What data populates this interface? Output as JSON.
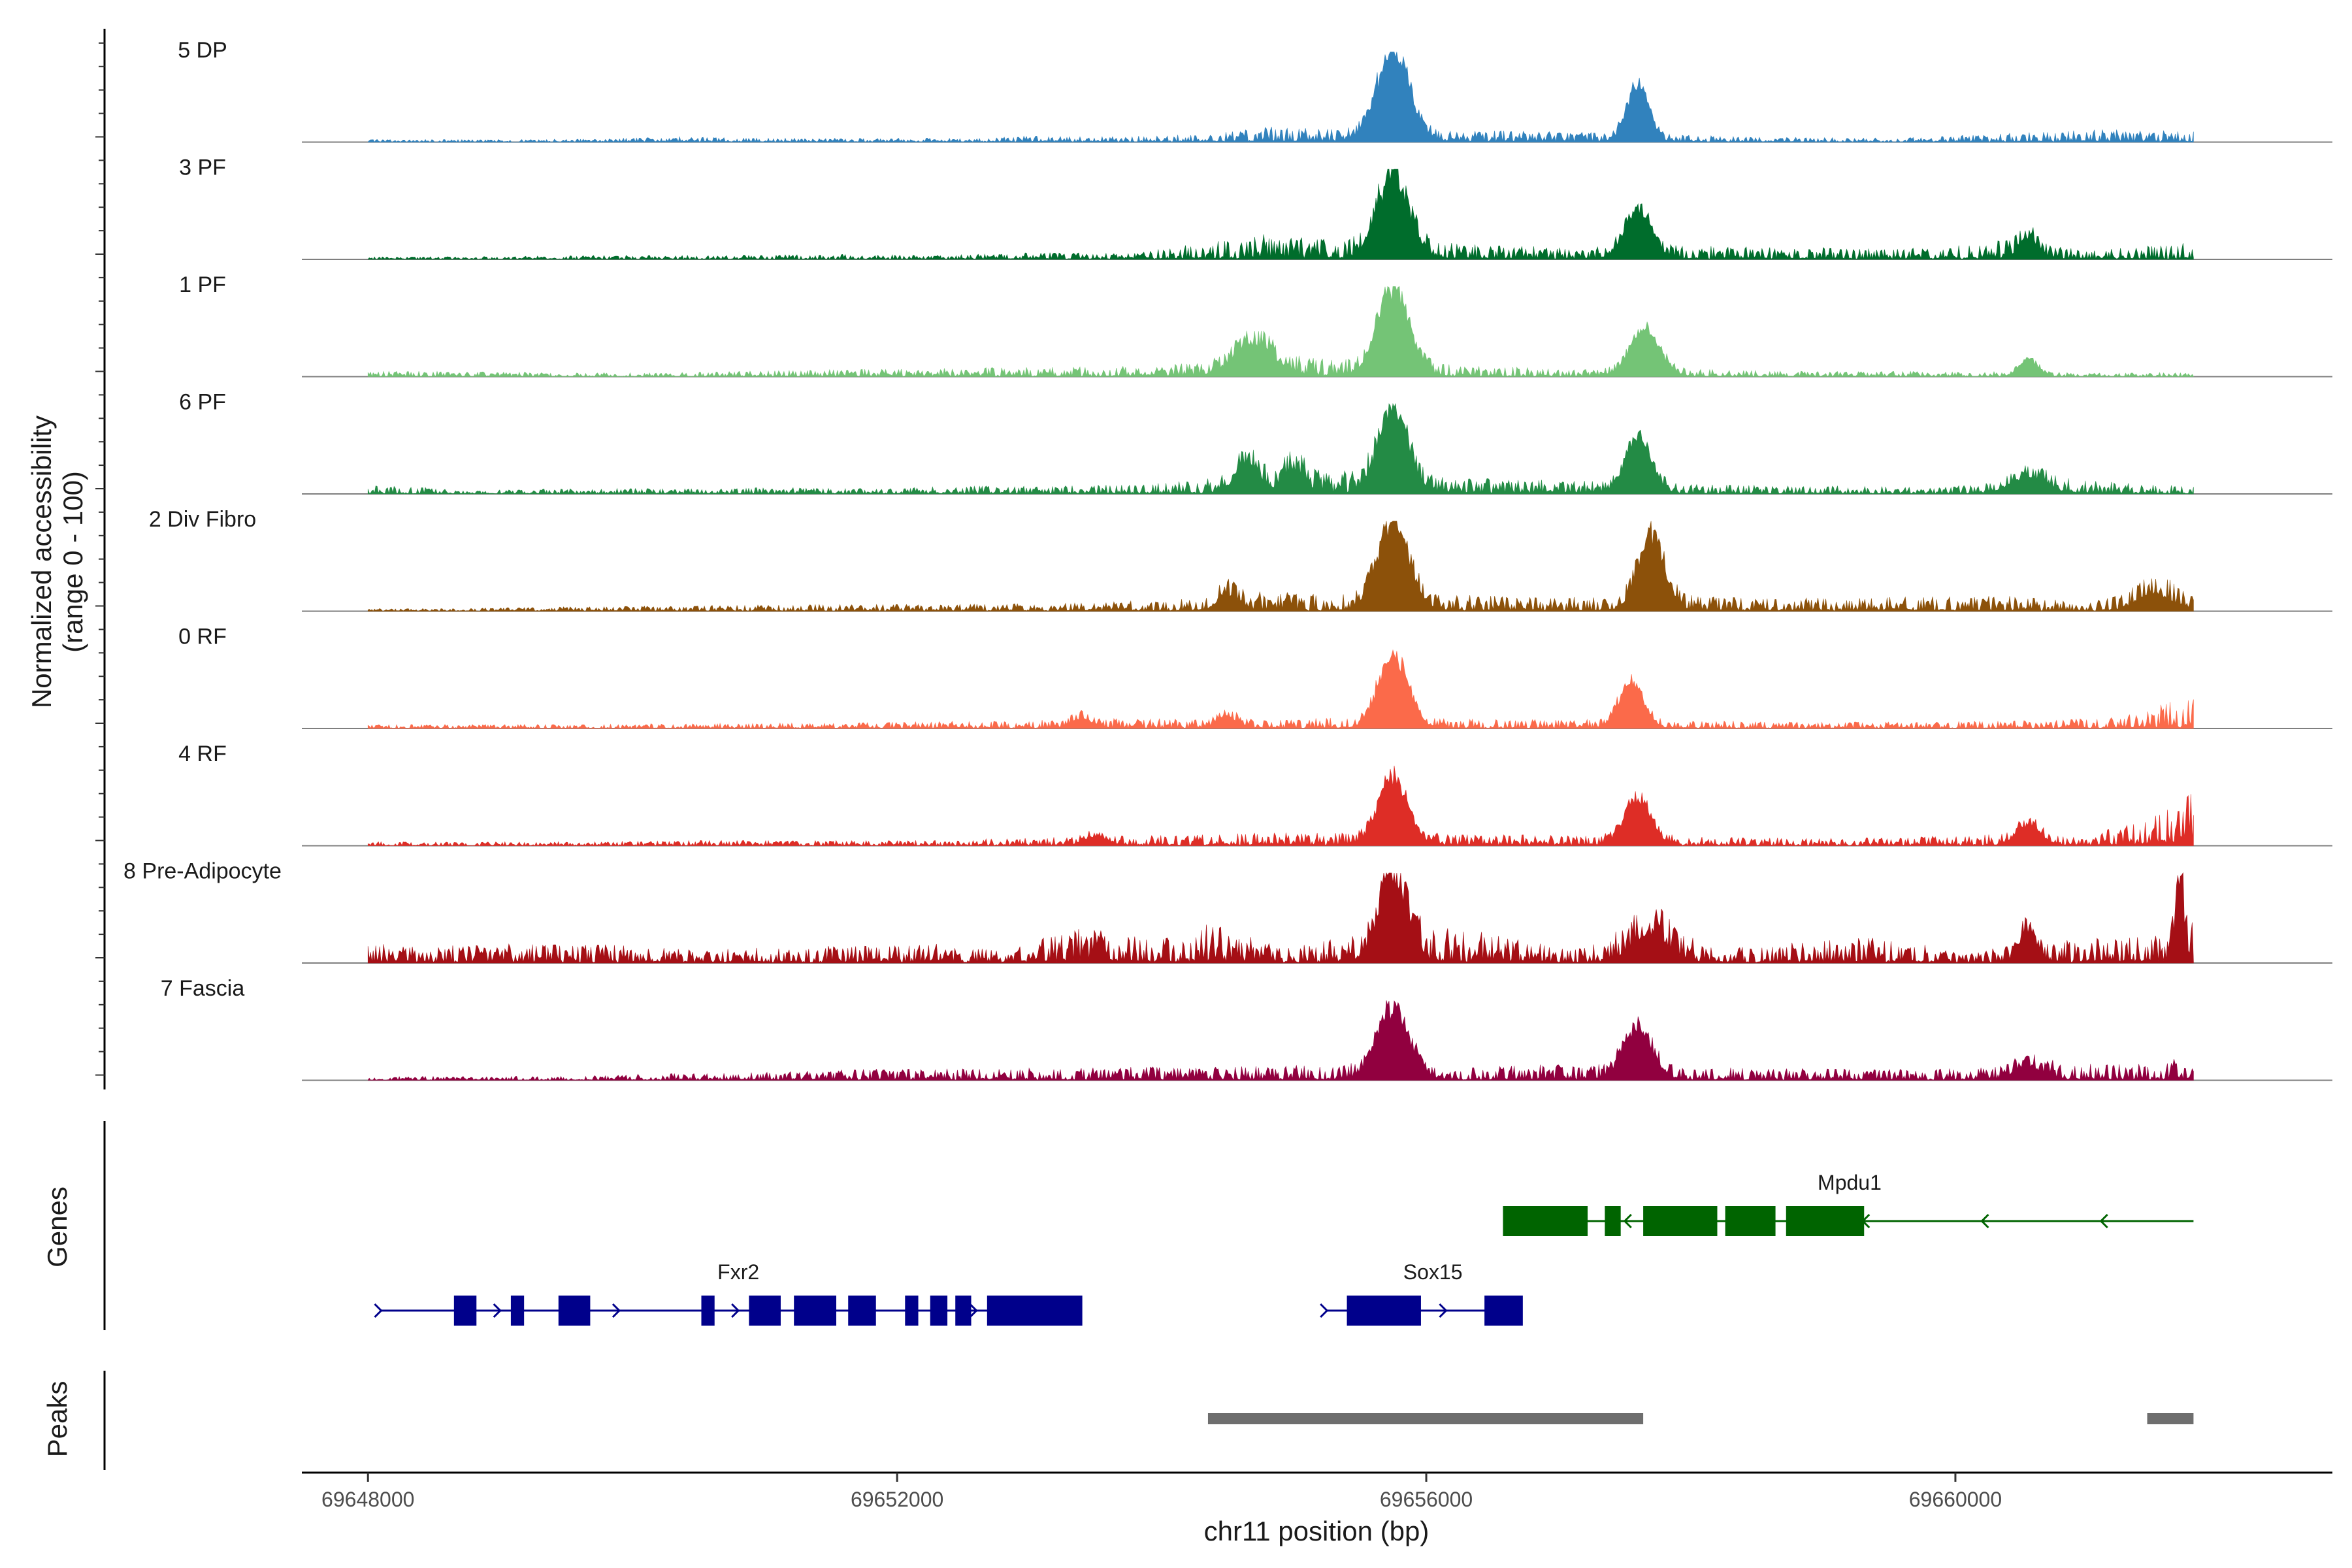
{
  "chart_data": {
    "type": "area",
    "chromosome": "chr11",
    "xlim": [
      69647500,
      69662850
    ],
    "xlabel": "chr11 position (bp)",
    "ylabel": "Normalized accessibility",
    "ylabel_sub": "(range 0 - 100)",
    "ylim": [
      0,
      100
    ],
    "x_ticks": [
      69648000,
      69652000,
      69656000,
      69660000
    ],
    "x_tick_labels": [
      "69648000",
      "69652000",
      "69656000",
      "69660000"
    ],
    "track_range": [
      69648000,
      69661800
    ],
    "series": [
      {
        "name": "5 DP",
        "color": "#3182bd",
        "baseline": [
          [
            69648700,
            2
          ],
          [
            69649300,
            2
          ],
          [
            69649900,
            3
          ],
          [
            69650300,
            4
          ],
          [
            69651000,
            3
          ],
          [
            69651800,
            3
          ],
          [
            69652600,
            3
          ],
          [
            69653100,
            5
          ],
          [
            69653600,
            4
          ],
          [
            69654300,
            6
          ],
          [
            69654800,
            12
          ],
          [
            69655200,
            10
          ],
          [
            69656300,
            9
          ],
          [
            69656900,
            8
          ],
          [
            69657700,
            6
          ],
          [
            69658500,
            4
          ],
          [
            69659500,
            3
          ],
          [
            69660300,
            6
          ],
          [
            69661200,
            10
          ],
          [
            69661700,
            8
          ]
        ],
        "peaks": [
          [
            69655750,
            100,
            120
          ],
          [
            69657600,
            62,
            80
          ]
        ]
      },
      {
        "name": "3 PF",
        "color": "#006d2c",
        "baseline": [
          [
            69648700,
            2
          ],
          [
            69649600,
            3
          ],
          [
            69650600,
            3
          ],
          [
            69651400,
            4
          ],
          [
            69652300,
            3
          ],
          [
            69653000,
            5
          ],
          [
            69653800,
            5
          ],
          [
            69654300,
            12
          ],
          [
            69654700,
            20
          ],
          [
            69655200,
            15
          ],
          [
            69656300,
            12
          ],
          [
            69657000,
            9
          ],
          [
            69658000,
            10
          ],
          [
            69658800,
            9
          ],
          [
            69659600,
            8
          ],
          [
            69660300,
            14
          ],
          [
            69661000,
            7
          ],
          [
            69661700,
            12
          ]
        ],
        "peaks": [
          [
            69655750,
            88,
            120
          ],
          [
            69657600,
            55,
            100
          ],
          [
            69660550,
            22,
            70
          ]
        ]
      },
      {
        "name": "1 PF",
        "color": "#74c476",
        "baseline": [
          [
            69648700,
            4
          ],
          [
            69649500,
            3
          ],
          [
            69650300,
            3
          ],
          [
            69651200,
            5
          ],
          [
            69652000,
            6
          ],
          [
            69653000,
            7
          ],
          [
            69653800,
            8
          ],
          [
            69654200,
            10
          ],
          [
            69654900,
            15
          ],
          [
            69656400,
            8
          ],
          [
            69657000,
            6
          ],
          [
            69658000,
            6
          ],
          [
            69659200,
            4
          ],
          [
            69660000,
            4
          ],
          [
            69661000,
            3
          ],
          [
            69661700,
            3
          ]
        ],
        "peaks": [
          [
            69654700,
            35,
            150
          ],
          [
            69655750,
            95,
            120
          ],
          [
            69657650,
            50,
            110
          ],
          [
            69660550,
            18,
            70
          ]
        ]
      },
      {
        "name": "6 PF",
        "color": "#238b45",
        "baseline": [
          [
            69648200,
            6
          ],
          [
            69648800,
            3
          ],
          [
            69649600,
            4
          ],
          [
            69650400,
            4
          ],
          [
            69651200,
            5
          ],
          [
            69651900,
            4
          ],
          [
            69652500,
            6
          ],
          [
            69653300,
            6
          ],
          [
            69654000,
            8
          ],
          [
            69654600,
            14
          ],
          [
            69655200,
            18
          ],
          [
            69656400,
            12
          ],
          [
            69657100,
            10
          ],
          [
            69658000,
            7
          ],
          [
            69659000,
            6
          ],
          [
            69659900,
            5
          ],
          [
            69660700,
            12
          ],
          [
            69661300,
            8
          ],
          [
            69661700,
            6
          ]
        ],
        "peaks": [
          [
            69654650,
            33,
            90
          ],
          [
            69655000,
            24,
            80
          ],
          [
            69655750,
            92,
            110
          ],
          [
            69657600,
            58,
            100
          ],
          [
            69660550,
            18,
            130
          ]
        ]
      },
      {
        "name": "2 Div Fibro",
        "color": "#8c510a",
        "baseline": [
          [
            69648600,
            2
          ],
          [
            69649300,
            3
          ],
          [
            69650200,
            4
          ],
          [
            69651000,
            5
          ],
          [
            69651700,
            5
          ],
          [
            69652400,
            5
          ],
          [
            69653200,
            6
          ],
          [
            69654100,
            9
          ],
          [
            69654800,
            15
          ],
          [
            69655300,
            12
          ],
          [
            69656300,
            12
          ],
          [
            69656900,
            10
          ],
          [
            69657900,
            12
          ],
          [
            69658500,
            10
          ],
          [
            69659300,
            10
          ],
          [
            69660300,
            12
          ],
          [
            69661000,
            7
          ],
          [
            69661800,
            20
          ]
        ],
        "peaks": [
          [
            69655750,
            92,
            120
          ],
          [
            69657700,
            78,
            100
          ],
          [
            69654500,
            18,
            70
          ],
          [
            69661500,
            18,
            120
          ]
        ]
      },
      {
        "name": "0 RF",
        "color": "#fb6a4a",
        "baseline": [
          [
            69648700,
            3
          ],
          [
            69649600,
            3
          ],
          [
            69650500,
            4
          ],
          [
            69651300,
            4
          ],
          [
            69652200,
            5
          ],
          [
            69653000,
            6
          ],
          [
            69653800,
            8
          ],
          [
            69654600,
            6
          ],
          [
            69655300,
            8
          ],
          [
            69656300,
            7
          ],
          [
            69657000,
            7
          ],
          [
            69658000,
            6
          ],
          [
            69659000,
            5
          ],
          [
            69659800,
            5
          ],
          [
            69660600,
            6
          ],
          [
            69661200,
            8
          ],
          [
            69661800,
            25
          ]
        ],
        "peaks": [
          [
            69655750,
            78,
            110
          ],
          [
            69657550,
            48,
            90
          ],
          [
            69654500,
            12,
            80
          ],
          [
            69653400,
            10,
            80
          ]
        ]
      },
      {
        "name": "4 RF",
        "color": "#de2d26",
        "baseline": [
          [
            69648700,
            3
          ],
          [
            69649700,
            3
          ],
          [
            69650600,
            4
          ],
          [
            69651500,
            4
          ],
          [
            69652300,
            4
          ],
          [
            69653000,
            6
          ],
          [
            69653700,
            7
          ],
          [
            69654400,
            9
          ],
          [
            69655100,
            10
          ],
          [
            69656300,
            9
          ],
          [
            69657000,
            8
          ],
          [
            69657900,
            7
          ],
          [
            69658700,
            6
          ],
          [
            69659600,
            6
          ],
          [
            69660200,
            9
          ],
          [
            69661000,
            6
          ],
          [
            69661800,
            40
          ]
        ],
        "peaks": [
          [
            69655750,
            72,
            110
          ],
          [
            69657600,
            48,
            100
          ],
          [
            69653500,
            10,
            80
          ],
          [
            69660550,
            22,
            90
          ]
        ]
      },
      {
        "name": "8 Pre-Adipocyte",
        "color": "#a50f15",
        "baseline": [
          [
            69649800,
            14
          ],
          [
            69650500,
            10
          ],
          [
            69652300,
            15
          ],
          [
            69652800,
            10
          ],
          [
            69653400,
            28
          ],
          [
            69653900,
            18
          ],
          [
            69654400,
            30
          ],
          [
            69654900,
            12
          ],
          [
            69656000,
            28
          ],
          [
            69656500,
            22
          ],
          [
            69657100,
            10
          ],
          [
            69657600,
            30
          ],
          [
            69658300,
            12
          ],
          [
            69658900,
            16
          ],
          [
            69659500,
            20
          ],
          [
            69660000,
            8
          ],
          [
            69660600,
            14
          ],
          [
            69661200,
            22
          ],
          [
            69661700,
            30
          ]
        ],
        "peaks": [
          [
            69655750,
            95,
            100
          ],
          [
            69660550,
            35,
            60
          ],
          [
            69661700,
            75,
            30
          ],
          [
            69657700,
            30,
            120
          ]
        ]
      },
      {
        "name": "7 Fascia",
        "color": "#91003f",
        "baseline": [
          [
            69649500,
            3
          ],
          [
            69650200,
            5
          ],
          [
            69651000,
            6
          ],
          [
            69651700,
            8
          ],
          [
            69652400,
            9
          ],
          [
            69653100,
            9
          ],
          [
            69653800,
            10
          ],
          [
            69654500,
            10
          ],
          [
            69655300,
            12
          ],
          [
            69656300,
            10
          ],
          [
            69657000,
            12
          ],
          [
            69657900,
            10
          ],
          [
            69658600,
            9
          ],
          [
            69659500,
            8
          ],
          [
            69660200,
            10
          ],
          [
            69660800,
            14
          ],
          [
            69661300,
            12
          ],
          [
            69661800,
            18
          ]
        ],
        "peaks": [
          [
            69655750,
            75,
            120
          ],
          [
            69657600,
            52,
            110
          ],
          [
            69660550,
            14,
            100
          ]
        ]
      }
    ],
    "genes_track": {
      "label": "Genes",
      "genes": [
        {
          "name": "Fxr2",
          "strand": "+",
          "color": "#00008b",
          "start": 69648100,
          "end": 69653300,
          "exons": [
            [
              69648650,
              69648820
            ],
            [
              69649080,
              69649180
            ],
            [
              69649440,
              69649680
            ],
            [
              69650520,
              69650620
            ],
            [
              69650880,
              69651120
            ],
            [
              69651220,
              69651540
            ],
            [
              69651630,
              69651840
            ],
            [
              69652060,
              69652160
            ],
            [
              69652250,
              69652380
            ],
            [
              69652440,
              69652560
            ],
            [
              69652680,
              69653400
            ]
          ]
        },
        {
          "name": "Sox15",
          "strand": "+",
          "color": "#00008b",
          "start": 69655250,
          "end": 69656600,
          "exons": [
            [
              69655400,
              69655960
            ],
            [
              69656440,
              69656730
            ]
          ]
        },
        {
          "name": "Mpdu1",
          "strand": "-",
          "color": "#006400",
          "start": 69656600,
          "end": 69661800,
          "exons": [
            [
              69656580,
              69657220
            ],
            [
              69657350,
              69657470
            ],
            [
              69657640,
              69658200
            ],
            [
              69658260,
              69658640
            ],
            [
              69658720,
              69659310
            ]
          ]
        }
      ]
    },
    "peaks_track": {
      "label": "Peaks",
      "color": "#6e6e6e",
      "regions": [
        [
          69654350,
          69657640
        ],
        [
          69661450,
          69661800
        ]
      ]
    }
  }
}
